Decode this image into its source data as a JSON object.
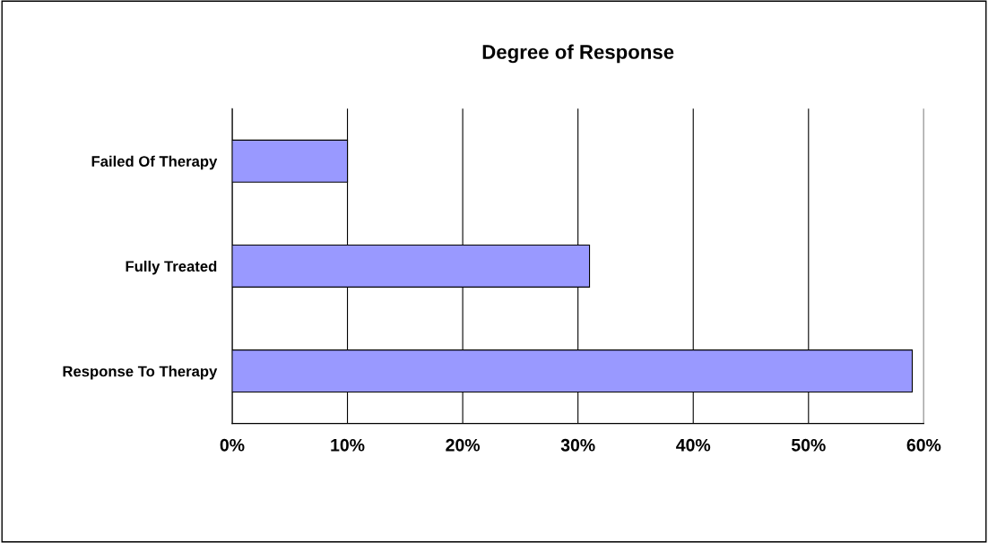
{
  "chart_data": {
    "type": "bar",
    "orientation": "horizontal",
    "title": "Degree of Response",
    "categories": [
      "Failed Of Therapy",
      "Fully Treated",
      "Response To Therapy"
    ],
    "values": [
      10,
      31,
      59
    ],
    "color": "#9999ff",
    "xlim": [
      0,
      60
    ],
    "xticks": [
      {
        "value": 0,
        "label": "0%"
      },
      {
        "value": 10,
        "label": "10%"
      },
      {
        "value": 20,
        "label": "20%"
      },
      {
        "value": 30,
        "label": "30%"
      },
      {
        "value": 40,
        "label": "40%"
      },
      {
        "value": 50,
        "label": "50%"
      },
      {
        "value": 60,
        "label": "60%"
      }
    ],
    "grid": "x",
    "legend": false
  }
}
